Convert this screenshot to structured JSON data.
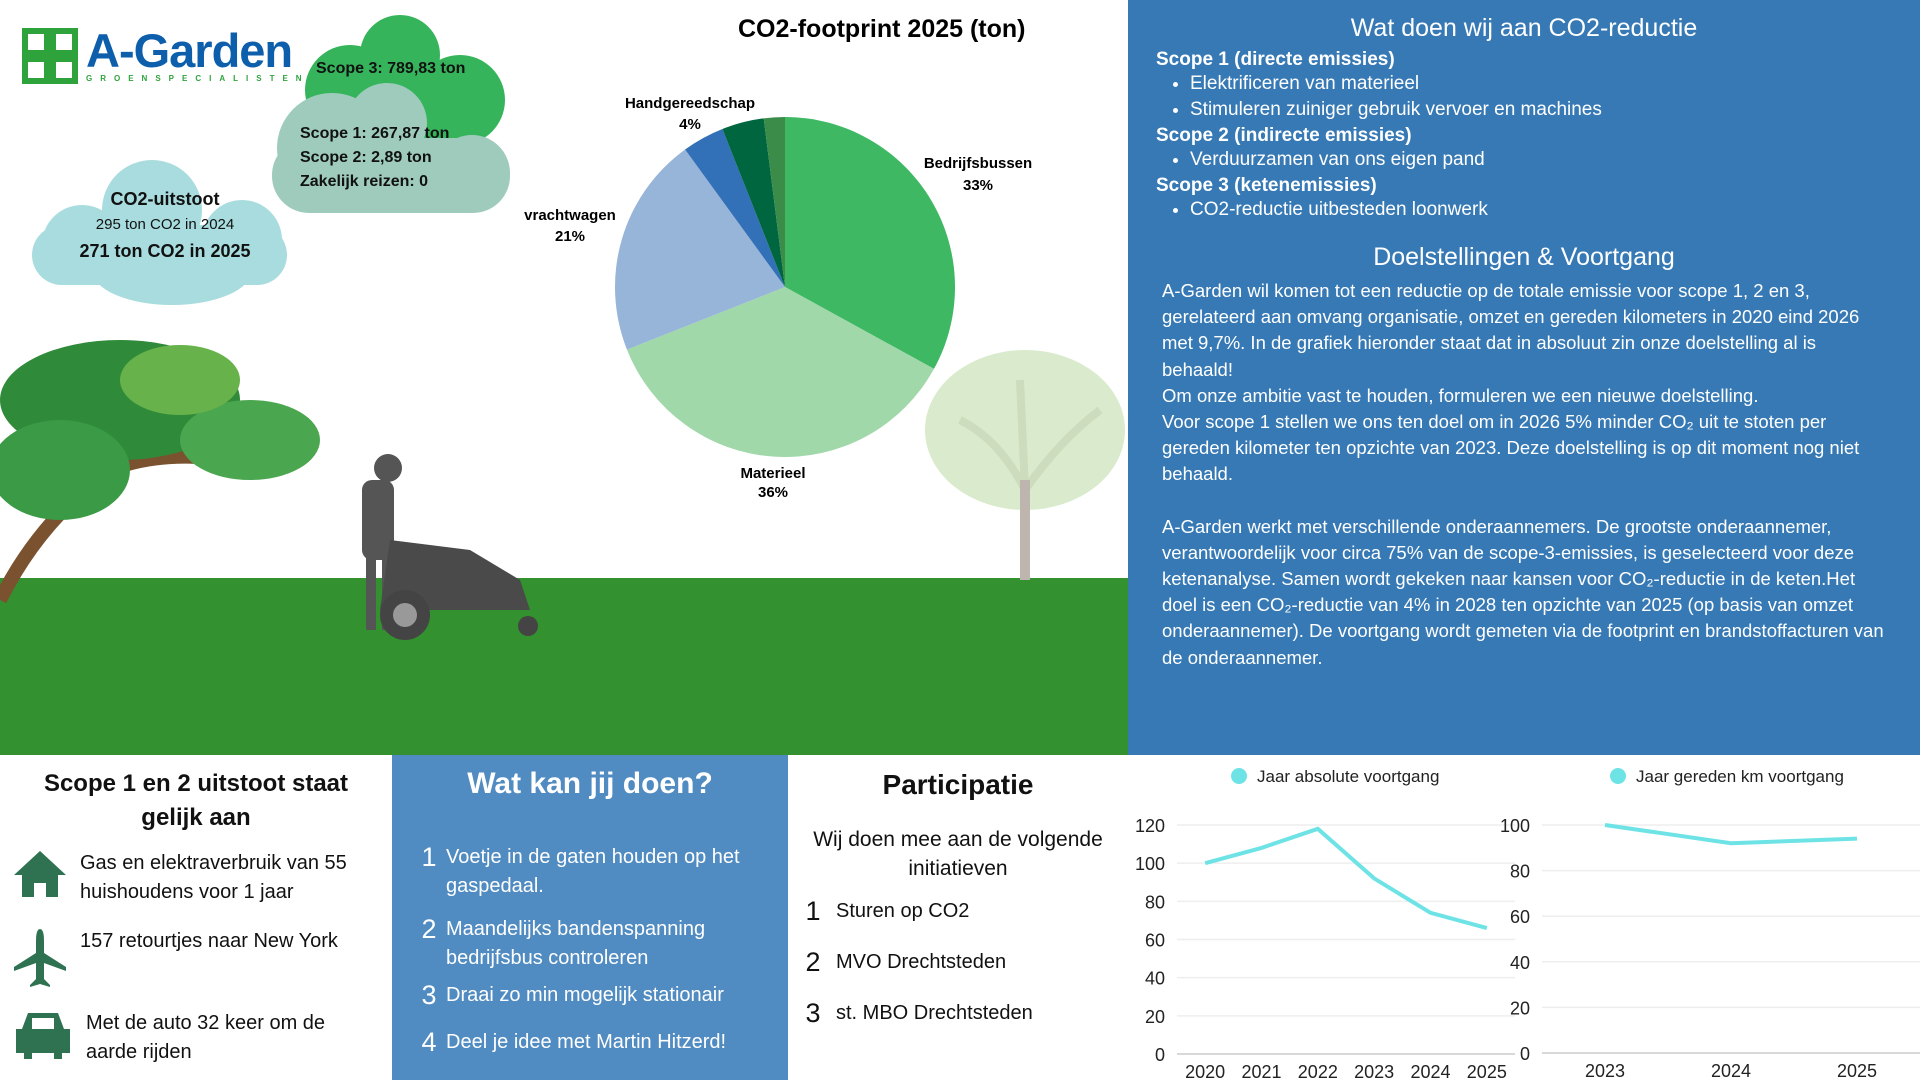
{
  "logo": {
    "name": "A-Garden",
    "tagline": "GROENSPECIALISTEN"
  },
  "clouds": {
    "scope3": "Scope 3:  789,83 ton",
    "scope1": "Scope 1: 267,87 ton",
    "scope2": "Scope 2: 2,89 ton",
    "travel": "Zakelijk reizen: 0",
    "uitstoot_title": "CO2-uitstoot",
    "uitstoot_2024": "295 ton CO2 in 2024",
    "uitstoot_2025": "271 ton CO2 in 2025"
  },
  "colors": {
    "blue_panel": "#3679b5",
    "mid_blue": "#508bc1",
    "grass": "#33912f",
    "line": "#6ee3e6"
  },
  "chart_data": [
    {
      "type": "pie",
      "title": "CO2-footprint 2025 (ton)",
      "slices": [
        {
          "label": "Bedrijfsbussen",
          "pct_label": "33%",
          "value": 33,
          "color": "#3fb864"
        },
        {
          "label": "Materieel",
          "pct_label": "36%",
          "value": 36,
          "color": "#a0d8aa"
        },
        {
          "label": "vrachtwagen",
          "pct_label": "21%",
          "value": 21,
          "color": "#97b4d9"
        },
        {
          "label": "Handgereedschap",
          "pct_label": "4%",
          "value": 4,
          "color": "#3270b8"
        },
        {
          "label": null,
          "pct_label": null,
          "value": 4,
          "color": "#006640"
        },
        {
          "label": null,
          "pct_label": null,
          "value": 2,
          "color": "#3a8c48"
        }
      ]
    },
    {
      "type": "line",
      "legend": "Jaar absolute voortgang",
      "x": [
        "2020",
        "2021",
        "2022",
        "2023",
        "2024",
        "2025"
      ],
      "values": [
        100,
        108,
        118,
        92,
        74,
        66
      ],
      "ylim": [
        0,
        120
      ],
      "yticks": [
        "0",
        "20",
        "40",
        "60",
        "80",
        "100",
        "120"
      ],
      "grid": true
    },
    {
      "type": "line",
      "legend": "Jaar gereden km voortgang",
      "x": [
        "2023",
        "2024",
        "2025"
      ],
      "values": [
        100,
        92,
        94
      ],
      "ylim": [
        0,
        100
      ],
      "yticks": [
        "0",
        "20",
        "40",
        "60",
        "80",
        "100"
      ],
      "grid": true
    }
  ],
  "reductie": {
    "title": "Wat doen wij aan CO2-reductie",
    "scope1": "Scope 1 (directe emissies)",
    "scope1_items": [
      "Elektrificeren van materieel",
      "Stimuleren zuiniger gebruik vervoer en machines"
    ],
    "scope2": "Scope 2 (indirecte emissies)",
    "scope2_items": [
      "Verduurzamen van ons eigen pand"
    ],
    "scope3": "Scope 3 (ketenemissies)",
    "scope3_items": [
      "CO2-reductie uitbesteden loonwerk"
    ]
  },
  "doelen": {
    "title": "Doelstellingen & Voortgang",
    "p1": "A-Garden wil komen tot een reductie op de totale emissie voor scope 1, 2 en 3, gerelateerd aan omvang organisatie, omzet en gereden kilometers in 2020 eind 2026 met 9,7%. In de grafiek hieronder staat dat in absoluut zin onze doelstelling al is behaald!",
    "p2": "Om onze ambitie vast te houden, formuleren we een nieuwe doelstelling.",
    "p3": "Voor scope 1 stellen we ons ten doel om in 2026 5% minder CO₂ uit te stoten per gereden kilometer ten opzichte van 2023. Deze doelstelling is op dit moment nog niet behaald.",
    "p4": "A-Garden werkt met verschillende onderaannemers. De grootste onderaannemer, verantwoordelijk voor circa 75% van de scope-3-emissies, is geselecteerd voor deze ketenanalyse. Samen wordt gekeken naar kansen voor CO₂-reductie in de keten.Het doel is een CO₂-reductie van 4% in 2028 ten opzichte van 2025 (op basis van omzet onderaannemer). De voortgang wordt gemeten via de footprint en brandstoffacturen van de onderaannemer."
  },
  "equivalent": {
    "title": "Scope 1 en 2 uitstoot staat gelijk aan",
    "items": [
      {
        "icon": "house-icon",
        "text": "Gas en elektraverbruik van 55 huishoudens voor 1 jaar"
      },
      {
        "icon": "airplane-icon",
        "text": "157 retourtjes naar New York"
      },
      {
        "icon": "car-icon",
        "text": "Met de auto 32 keer om de aarde rijden"
      }
    ]
  },
  "actions": {
    "title": "Wat kan jij doen?",
    "items": [
      {
        "n": "1",
        "text": "Voetje in de gaten houden op het gaspedaal."
      },
      {
        "n": "2",
        "text": "Maandelijks bandenspanning bedrijfsbus controleren"
      },
      {
        "n": "3",
        "text": "Draai zo min mogelijk stationair"
      },
      {
        "n": "4",
        "text": "Deel je idee met Martin Hitzerd!"
      }
    ]
  },
  "participatie": {
    "title": "Participatie",
    "intro": "Wij doen mee aan de volgende initiatieven",
    "items": [
      {
        "n": "1",
        "text": "Sturen op CO2"
      },
      {
        "n": "2",
        "text": "MVO Drechtsteden"
      },
      {
        "n": "3",
        "text": "st. MBO Drechtsteden"
      }
    ]
  }
}
